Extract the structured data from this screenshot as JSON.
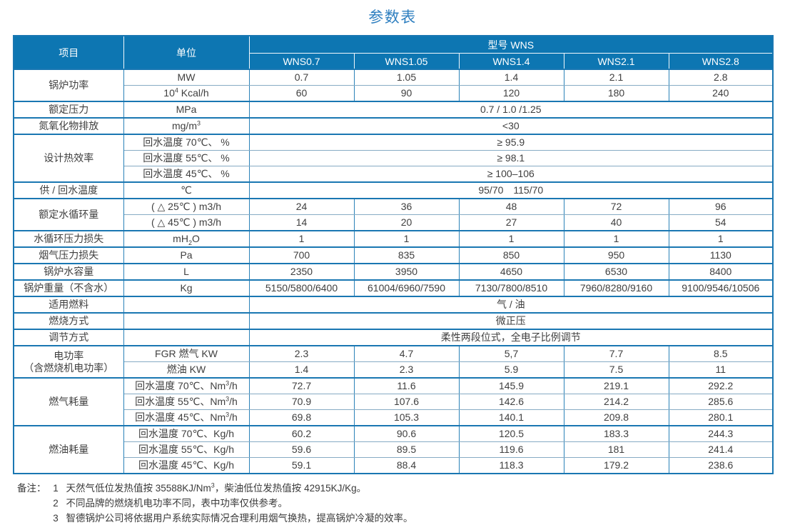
{
  "title": "参数表",
  "colors": {
    "header_bg": "#0d76b2",
    "title_text": "#2e7fc0",
    "grid_thick": "#1a77b2",
    "grid_vertical": "#2a82b8",
    "grid_thin": "#86abc4",
    "body_text": "#3f3f3f"
  },
  "table": {
    "header": {
      "item": "项目",
      "unit": "单位",
      "model_group": "型号 WNS",
      "models": [
        "WNS0.7",
        "WNS1.05",
        "WNS1.4",
        "WNS2.1",
        "WNS2.8"
      ]
    },
    "rows": [
      {
        "item": "锅炉功率",
        "item_span": 2,
        "unit": [
          {
            "t": "MW"
          }
        ],
        "values": [
          "0.7",
          "1.05",
          "1.4",
          "2.1",
          "2.8"
        ],
        "group": true
      },
      {
        "unit": [
          {
            "t": "10"
          },
          {
            "sup": "4"
          },
          {
            "t": " Kcal/h"
          }
        ],
        "values": [
          "60",
          "90",
          "120",
          "180",
          "240"
        ]
      },
      {
        "item": "额定压力",
        "unit": [
          {
            "t": "MPa"
          }
        ],
        "merged": "0.7 / 1.0 /1.25",
        "group": true
      },
      {
        "item": "氮氧化物排放",
        "unit": [
          {
            "t": "mg/m"
          },
          {
            "sup": "3"
          }
        ],
        "merged": "<30",
        "group": true
      },
      {
        "item": "设计热效率",
        "item_span": 3,
        "unit": [
          {
            "t": "回水温度 70℃、 %"
          }
        ],
        "merged": "≥ 95.9",
        "group": true
      },
      {
        "unit": [
          {
            "t": "回水温度 55℃、 %"
          }
        ],
        "merged": "≥ 98.1"
      },
      {
        "unit": [
          {
            "t": "回水温度 45℃、 %"
          }
        ],
        "merged": "≥ 100–106"
      },
      {
        "item": "供 / 回水温度",
        "unit": [
          {
            "t": "℃"
          }
        ],
        "merged": "95/70　115/70",
        "group": true
      },
      {
        "item": "额定水循环量",
        "item_span": 2,
        "unit": [
          {
            "t": "( △ 25℃ ) m3/h"
          }
        ],
        "values": [
          "24",
          "36",
          "48",
          "72",
          "96"
        ],
        "group": true
      },
      {
        "unit": [
          {
            "t": "( △ 45℃ ) m3/h"
          }
        ],
        "values": [
          "14",
          "20",
          "27",
          "40",
          "54"
        ]
      },
      {
        "item": "水循环压力损失",
        "unit": [
          {
            "t": "mH"
          },
          {
            "sub": "2"
          },
          {
            "t": "O"
          }
        ],
        "values": [
          "1",
          "1",
          "1",
          "1",
          "1"
        ],
        "group": true
      },
      {
        "item": "烟气压力损失",
        "unit": [
          {
            "t": "Pa"
          }
        ],
        "values": [
          "700",
          "835",
          "850",
          "950",
          "1130"
        ],
        "group": true
      },
      {
        "item": "锅炉水容量",
        "unit": [
          {
            "t": "L"
          }
        ],
        "values": [
          "2350",
          "3950",
          "4650",
          "6530",
          "8400"
        ],
        "group": true
      },
      {
        "item": "锅炉重量（不含水）",
        "unit": [
          {
            "t": "Kg"
          }
        ],
        "values": [
          "5150/5800/6400",
          "61004/6960/7590",
          "7130/7800/8510",
          "7960/8280/9160",
          "9100/9546/10506"
        ],
        "group": true
      },
      {
        "item": "适用燃料",
        "unit": [],
        "merged": "气 / 油",
        "group": true
      },
      {
        "item": "燃烧方式",
        "unit": [],
        "merged": "微正压",
        "group": true
      },
      {
        "item": "调节方式",
        "unit": [],
        "merged": "柔性两段位式，全电子比例调节",
        "group": true
      },
      {
        "item": "电功率",
        "item2": "（含燃烧机电功率）",
        "item_span": 2,
        "unit": [
          {
            "t": "FGR 燃气 KW"
          }
        ],
        "values": [
          "2.3",
          "4.7",
          "5,7",
          "7.7",
          "8.5"
        ],
        "group": true
      },
      {
        "unit": [
          {
            "t": "燃油 KW"
          }
        ],
        "values": [
          "1.4",
          "2.3",
          "5.9",
          "7.5",
          "11"
        ]
      },
      {
        "item": "燃气耗量",
        "item_span": 3,
        "unit": [
          {
            "t": "回水温度 70℃、Nm"
          },
          {
            "sup": "3"
          },
          {
            "t": "/h"
          }
        ],
        "values": [
          "72.7",
          "11.6",
          "145.9",
          "219.1",
          "292.2"
        ],
        "group": true
      },
      {
        "unit": [
          {
            "t": "回水温度 55℃、Nm"
          },
          {
            "sup": "3"
          },
          {
            "t": "/h"
          }
        ],
        "values": [
          "70.9",
          "107.6",
          "142.6",
          "214.2",
          "285.6"
        ]
      },
      {
        "unit": [
          {
            "t": "回水温度 45℃、Nm"
          },
          {
            "sup": "3"
          },
          {
            "t": "/h"
          }
        ],
        "values": [
          "69.8",
          "105.3",
          "140.1",
          "209.8",
          "280.1"
        ]
      },
      {
        "item": "燃油耗量",
        "item_span": 3,
        "unit": [
          {
            "t": "回水温度 70℃、Kg/h"
          }
        ],
        "values": [
          "60.2",
          "90.6",
          "120.5",
          "183.3",
          "244.3"
        ],
        "group": true
      },
      {
        "unit": [
          {
            "t": "回水温度 55℃、Kg/h"
          }
        ],
        "values": [
          "59.6",
          "89.5",
          "119.6",
          "181",
          "241.4"
        ]
      },
      {
        "unit": [
          {
            "t": "回水温度 45℃、Kg/h"
          }
        ],
        "values": [
          "59.1",
          "88.4",
          "118.3",
          "179.2",
          "238.6"
        ]
      }
    ]
  },
  "notes": {
    "prefix": "备注：",
    "items": [
      {
        "num": "1",
        "pre": "天然气低位发热值按 35588KJ/Nm",
        "sup": "3",
        "post": "，柴油低位发热值按 42915KJ/Kg。"
      },
      {
        "num": "2",
        "text": "不同品牌的燃烧机电功率不同，表中功率仅供参考。"
      },
      {
        "num": "3",
        "text": "智德锅炉公司将依据用户系统实际情况合理利用烟气换热，提高锅炉冷凝的效率。"
      }
    ]
  }
}
